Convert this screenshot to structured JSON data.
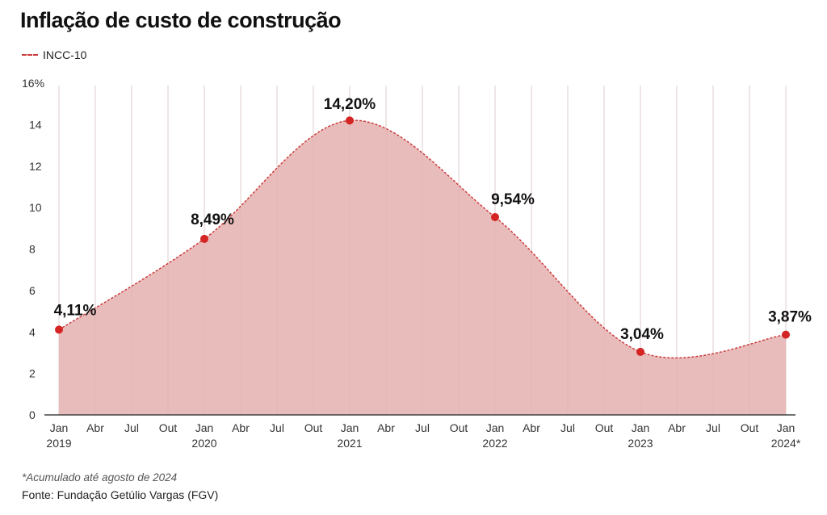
{
  "title": "Inflação de custo de construção",
  "legend": "INCC-10",
  "note": "*Acumulado até agosto de 2024",
  "source": "Fonte: Fundação Getúlio Vargas (FGV)",
  "colors": {
    "line": "#cc3b3b",
    "fill": "#e8b8b8",
    "dot": "#d42424"
  },
  "chart_data": {
    "type": "area",
    "title": "Inflação de custo de construção",
    "series": [
      {
        "name": "INCC-10",
        "x": [
          "Jan 2019",
          "Jan 2020",
          "Jan 2021",
          "Jan 2022",
          "Jan 2023",
          "Jan 2024*"
        ],
        "values": [
          4.11,
          8.49,
          14.2,
          9.54,
          3.04,
          3.87
        ],
        "labels": [
          "4,11%",
          "8,49%",
          "14,20%",
          "9,54%",
          "3,04%",
          "3,87%"
        ]
      }
    ],
    "ylim": [
      0,
      16
    ],
    "yticks": [
      "0",
      "2",
      "4",
      "6",
      "8",
      "10",
      "12",
      "14",
      "16%"
    ],
    "xticks": [
      "Jan",
      "Abr",
      "Jul",
      "Out",
      "Jan",
      "Abr",
      "Jul",
      "Out",
      "Jan",
      "Abr",
      "Jul",
      "Out",
      "Jan",
      "Abr",
      "Jul",
      "Out",
      "Jan",
      "Abr",
      "Jul",
      "Out",
      "Jan"
    ],
    "years": [
      "2019",
      "2020",
      "2021",
      "2022",
      "2023",
      "2024*"
    ],
    "grid": true,
    "legend_position": "top-left"
  }
}
